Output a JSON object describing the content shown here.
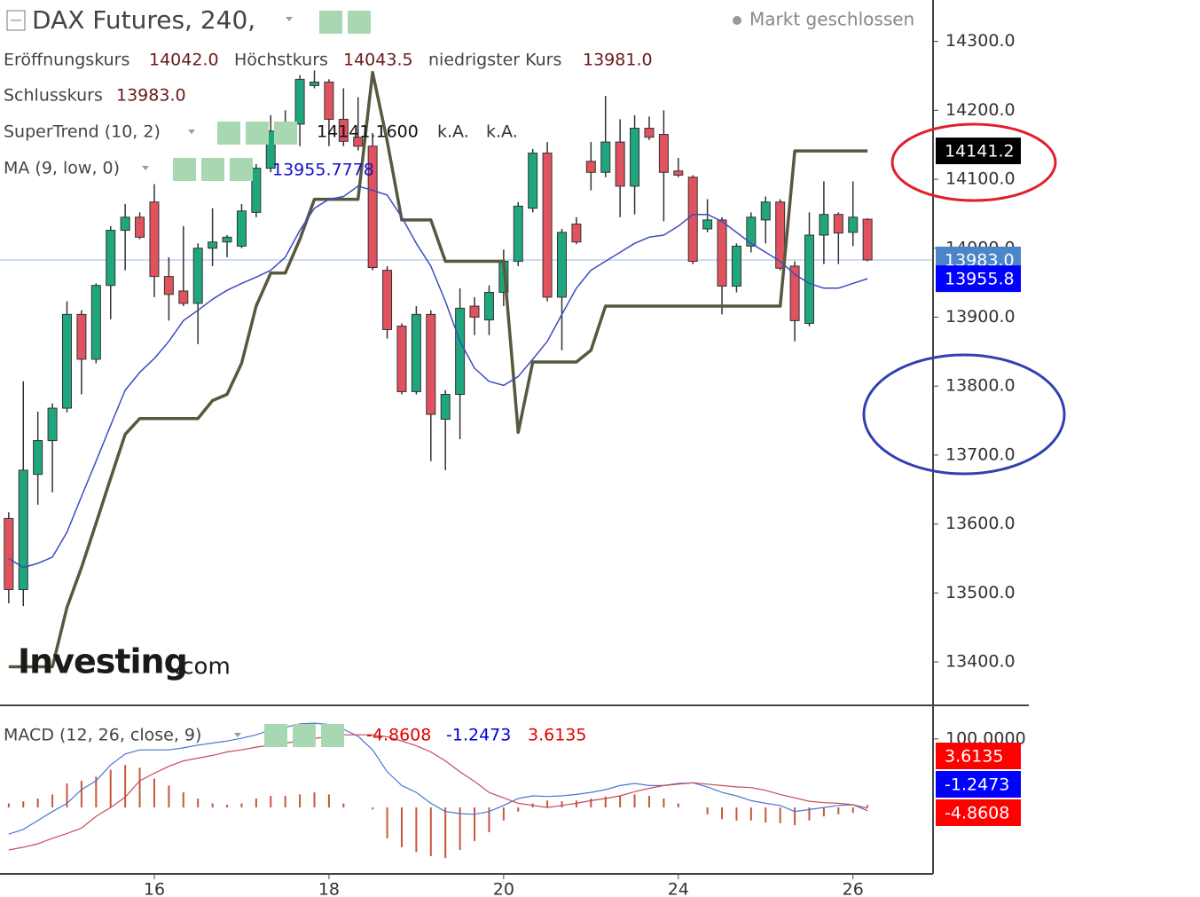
{
  "header": {
    "title": "DAX Futures, 240,",
    "status": "Markt geschlossen",
    "ohlc": [
      {
        "label": "Eröffnungskurs",
        "value": "14042.0"
      },
      {
        "label": "Höchstkurs",
        "value": "14043.5"
      },
      {
        "label": "niedrigster Kurs",
        "value": "13981.0"
      },
      {
        "label": "Schlusskurs",
        "value": "13983.0"
      }
    ],
    "supertrend_values": [
      "14141.1600",
      "k.A.",
      "k.A."
    ],
    "ma_value": "13955.7778",
    "macd_values": [
      "-4.8608",
      "-1.2473",
      "3.6135"
    ]
  },
  "logo": {
    "brand": "Investing",
    "suffix": ".com"
  },
  "chart_data": [
    {
      "type": "candlestick",
      "xlim": [
        -0.6,
        63.5
      ],
      "ylim": [
        13337,
        14360
      ],
      "yticks": [
        {
          "value": 13400,
          "label": "13400.0"
        },
        {
          "value": 13500,
          "label": "13500.0"
        },
        {
          "value": 13600,
          "label": "13600.0"
        },
        {
          "value": 13700,
          "label": "13700.0"
        },
        {
          "value": 13800,
          "label": "13800.0"
        },
        {
          "value": 13900,
          "label": "13900.0"
        },
        {
          "value": 14000,
          "label": "14000.0"
        },
        {
          "value": 14100,
          "label": "14100.0"
        },
        {
          "value": 14200,
          "label": "14200.0"
        },
        {
          "value": 14300,
          "label": "14300.0"
        }
      ],
      "up_color": "#1fa67e",
      "down_color": "#e0535e",
      "price_line_color": "#9bbbe8",
      "close_label": "13983.0",
      "close_label_color": "#4a86c8",
      "open": [
        13608,
        13505,
        13672,
        13721,
        13768,
        13904,
        13839,
        13946,
        14026,
        14045,
        14067,
        13959,
        13938,
        13920,
        14000,
        14009,
        14003,
        14052,
        14116,
        14170,
        14180,
        14236,
        14241,
        14187,
        14161,
        14148,
        13968,
        13887,
        13792,
        13904,
        13752,
        13788,
        13916,
        13896,
        13936,
        13981,
        14058,
        14138,
        13929,
        14035,
        14126,
        14110,
        14154,
        14090,
        14174,
        14165,
        14112,
        14103,
        14028,
        14041,
        13945,
        14003,
        14041,
        14067,
        13974,
        13891,
        14019,
        14049,
        14023,
        14042
      ],
      "high": [
        13617,
        13807,
        13763,
        13775,
        13923,
        13910,
        13949,
        14032,
        14064,
        14052,
        14093,
        13987,
        14032,
        14007,
        14058,
        14019,
        14064,
        14122,
        14193,
        14200,
        14251,
        14258,
        14245,
        14232,
        14219,
        14167,
        13974,
        13891,
        13916,
        13910,
        13794,
        13942,
        13929,
        13946,
        13998,
        14067,
        14144,
        14154,
        14028,
        14045,
        14154,
        14221,
        14187,
        14193,
        14191,
        14200,
        14131,
        14106,
        14071,
        14045,
        14007,
        14052,
        14075,
        14071,
        13981,
        14052,
        14097,
        14052,
        14097,
        14043.5
      ],
      "low": [
        13485,
        13481,
        13628,
        13646,
        13762,
        13788,
        13833,
        13897,
        13968,
        14013,
        13929,
        13895,
        13916,
        13861,
        13974,
        13987,
        14000,
        14045,
        14110,
        14155,
        14148,
        14232,
        14148,
        14148,
        14142,
        13968,
        13869,
        13788,
        13788,
        13691,
        13678,
        13723,
        13874,
        13874,
        13916,
        13974,
        14052,
        13923,
        13852,
        14006,
        14084,
        14103,
        14045,
        14049,
        14157,
        14039,
        14103,
        13977,
        14023,
        13904,
        13936,
        13994,
        14007,
        13968,
        13865,
        13887,
        13977,
        13977,
        14003,
        13981
      ],
      "close": [
        13505,
        13678,
        13721,
        13768,
        13904,
        13839,
        13946,
        14026,
        14045,
        14016,
        13959,
        13933,
        13920,
        14000,
        14009,
        14016,
        14054,
        14116,
        14170,
        14180,
        14245,
        14241,
        14187,
        14155,
        14148,
        13972,
        13882,
        13792,
        13904,
        13759,
        13788,
        13913,
        13900,
        13936,
        13981,
        14061,
        14138,
        13929,
        14023,
        14009,
        14110,
        14154,
        14090,
        14174,
        14161,
        14110,
        14106,
        13981,
        14041,
        13945,
        14003,
        14045,
        14067,
        13971,
        13895,
        14019,
        14049,
        14022,
        14045,
        13983
      ],
      "series": [
        {
          "name": "SuperTrend (10, 2)",
          "color": "#58583e",
          "last_label": "14141.2",
          "label_color": "#000000",
          "values": [
            13393,
            13393,
            13393,
            13393,
            13479,
            13537,
            13601,
            13666,
            13730,
            13753,
            13753,
            13753,
            13753,
            13753,
            13779,
            13788,
            13833,
            13916,
            13964,
            13964,
            14013,
            14071,
            14071,
            14071,
            14071,
            14255,
            14155,
            14041,
            14041,
            14041,
            13981,
            13981,
            13981,
            13981,
            13981,
            13733,
            13835,
            13835,
            13835,
            13835,
            13852,
            13916,
            13916,
            13916,
            13916,
            13916,
            13916,
            13916,
            13916,
            13916,
            13916,
            13916,
            13916,
            13916,
            14141.16,
            14141.16,
            14141.16,
            14141.16,
            14141.16,
            14141.16
          ]
        },
        {
          "name": "MA (9, low, 0)",
          "color": "#3b4cc0",
          "last_label": "13955.8",
          "label_color": "#0000ff",
          "values": [
            13550,
            13537,
            13543,
            13552,
            13588,
            13640,
            13691,
            13743,
            13794,
            13820,
            13840,
            13865,
            13895,
            13910,
            13926,
            13939,
            13949,
            13958,
            13968,
            13987,
            14026,
            14058,
            14071,
            14075,
            14090,
            14084,
            14077,
            14045,
            14007,
            13974,
            13923,
            13865,
            13826,
            13807,
            13801,
            13814,
            13839,
            13865,
            13904,
            13942,
            13968,
            13981,
            13994,
            14007,
            14016,
            14019,
            14032,
            14049,
            14049,
            14039,
            14023,
            14007,
            13994,
            13981,
            13962,
            13949,
            13942,
            13942,
            13949,
            13955.7778
          ]
        }
      ]
    },
    {
      "type": "macd",
      "name": "MACD (12, 26, close, 9)",
      "xlim": [
        -0.6,
        63.5
      ],
      "ylim": [
        -97,
        149
      ],
      "yticks": [
        {
          "value": 100,
          "label": "100.0000"
        }
      ],
      "xticks": [
        {
          "value": 10,
          "label": "16"
        },
        {
          "value": 22,
          "label": "18"
        },
        {
          "value": 34,
          "label": "20"
        },
        {
          "value": 46,
          "label": "24"
        },
        {
          "value": 58,
          "label": "26"
        }
      ],
      "histogram": {
        "color": "#c8553d",
        "last_label": "3.6135",
        "label_color": "#ff0000",
        "values": [
          6,
          9,
          13,
          19,
          35,
          39,
          45,
          55,
          62,
          58,
          42,
          32,
          22,
          13,
          6,
          4,
          6,
          13,
          17,
          17,
          19,
          22,
          19,
          6,
          0,
          -3,
          -45,
          -58,
          -65,
          -71,
          -74,
          -62,
          -49,
          -36,
          -19,
          -6,
          6,
          10,
          9,
          10,
          13,
          16,
          17,
          19,
          17,
          13,
          6,
          0,
          -10,
          -17,
          -19,
          -19,
          -22,
          -23,
          -26,
          -19,
          -13,
          -10,
          -8,
          3.6135
        ]
      },
      "series": [
        {
          "color": "#ff0000",
          "last_label": "-4.8608",
          "label_color": "#ff0000",
          "line_color": "#4a76d0",
          "values": [
            -39,
            -32,
            -19,
            -6,
            6,
            26,
            39,
            62,
            78,
            84,
            84,
            84,
            87,
            91,
            94,
            97,
            101,
            106,
            113,
            117,
            122,
            123,
            121,
            114,
            104,
            84,
            52,
            32,
            22,
            6,
            -6,
            -9,
            -10,
            -6,
            3,
            13,
            17,
            16,
            17,
            19,
            22,
            26,
            32,
            35,
            32,
            32,
            35,
            36,
            30,
            22,
            17,
            10,
            6,
            3,
            -6,
            -3,
            0,
            3,
            4,
            -4.8608
          ]
        },
        {
          "color": "#0000ff",
          "last_label": "-1.2473",
          "label_color": "#0000ff",
          "line_color": "#c84a5a",
          "values": [
            -62,
            -58,
            -53,
            -45,
            -38,
            -30,
            -13,
            0,
            15,
            39,
            50,
            60,
            68,
            72,
            76,
            81,
            84,
            88,
            91,
            94,
            97,
            101,
            103,
            106,
            106,
            106,
            103,
            97,
            90,
            81,
            68,
            52,
            38,
            22,
            14,
            6,
            3,
            0,
            3,
            6,
            10,
            13,
            17,
            23,
            28,
            32,
            34,
            36,
            34,
            32,
            30,
            29,
            25,
            19,
            14,
            9,
            7,
            6,
            4,
            -1.2473
          ]
        }
      ]
    }
  ]
}
